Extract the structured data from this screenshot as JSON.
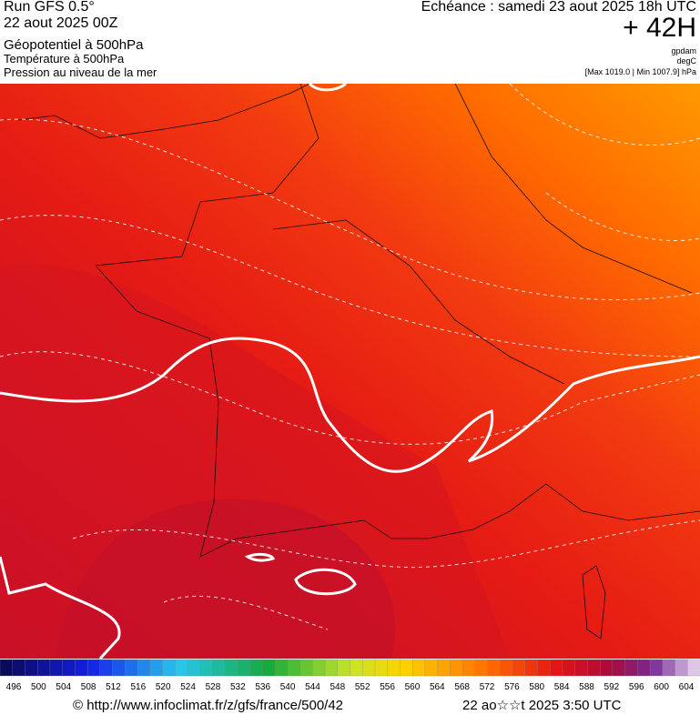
{
  "header": {
    "run": "Run GFS 0.5°",
    "run_date": "22 aout 2025 00Z",
    "field1": "Géopotentiel à 500hPa",
    "field2": "Température à 500hPa",
    "field3": "Pression au niveau de la mer",
    "valid": "Echéance : samedi 23 aout 2025 18h UTC",
    "lead": "+ 42H",
    "unit1": "gpdam",
    "unit2": "degC",
    "pressure_range": "[Max 1019.0 | Min 1007.9] hPa"
  },
  "colorbar": {
    "labels": [
      496,
      500,
      504,
      508,
      512,
      516,
      520,
      524,
      528,
      532,
      536,
      540,
      544,
      548,
      552,
      556,
      560,
      564,
      568,
      572,
      576,
      580,
      584,
      588,
      592,
      596,
      600,
      604
    ]
  },
  "footer": {
    "url": "© http://www.infoclimat.fr/z/gfs/france/500/42",
    "time": "22 ao☆☆t 2025  3:50 UTC"
  }
}
